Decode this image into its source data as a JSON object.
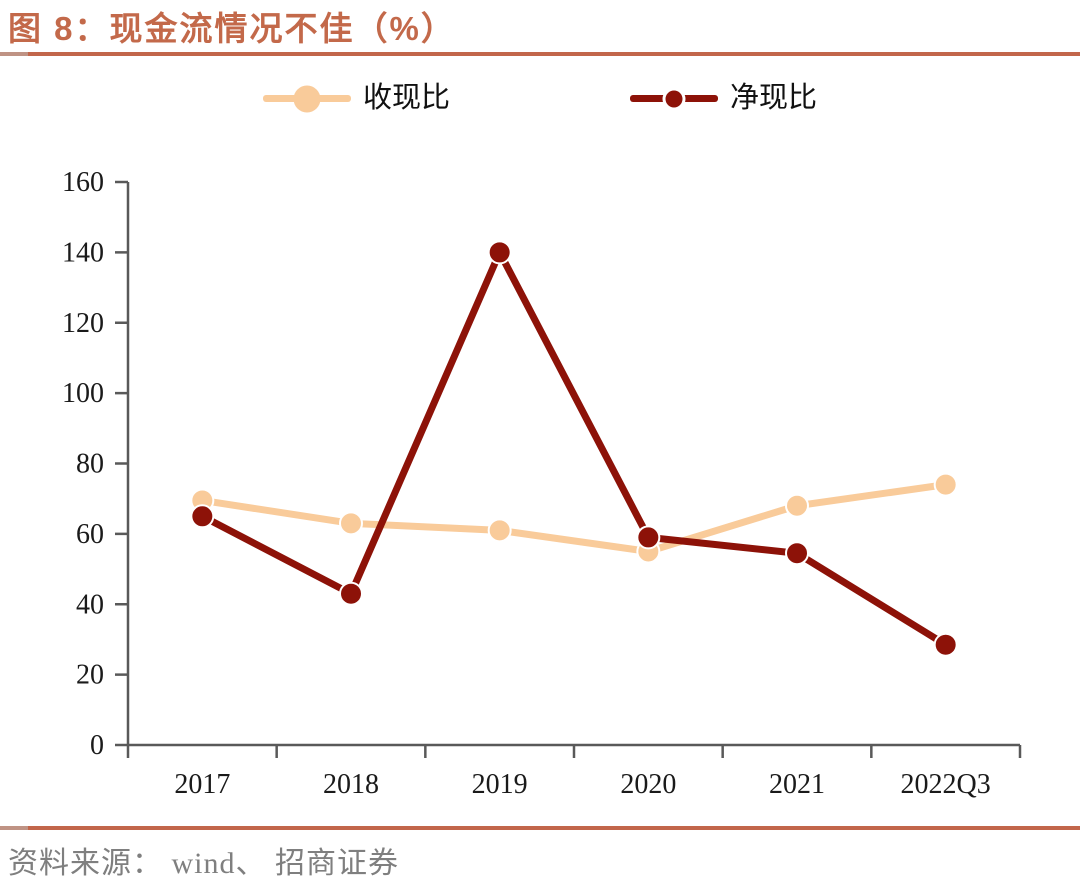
{
  "header": {
    "title": "图 8：现金流情况不佳（%）"
  },
  "colors": {
    "accent_divider": "#c2664b",
    "accent_divider_left": "#bf9384",
    "title_text": "#c3694a",
    "axis_line": "#595959",
    "tick_text": "#1a1a1a",
    "source_text": "#7f7f7f",
    "series_shouxianbi": "#f9cb9a",
    "series_jingxianbi": "#8d1208"
  },
  "chart_data": {
    "type": "line",
    "title": "图 8：现金流情况不佳（%）",
    "categories": [
      "2017",
      "2018",
      "2019",
      "2020",
      "2021",
      "2022Q3"
    ],
    "series": [
      {
        "name": "收现比",
        "color": "#f9cb9a",
        "values": [
          69.5,
          63,
          61,
          55,
          68,
          74
        ]
      },
      {
        "name": "净现比",
        "color": "#8d1208",
        "values": [
          65,
          43,
          140,
          59,
          54.5,
          28.5
        ]
      }
    ],
    "xlabel": "",
    "ylabel": "",
    "ylim": [
      0,
      160
    ],
    "ytick_step": 20,
    "grid": false,
    "legend_position": "top"
  },
  "footer": {
    "source": "资料来源： wind、 招商证券"
  }
}
